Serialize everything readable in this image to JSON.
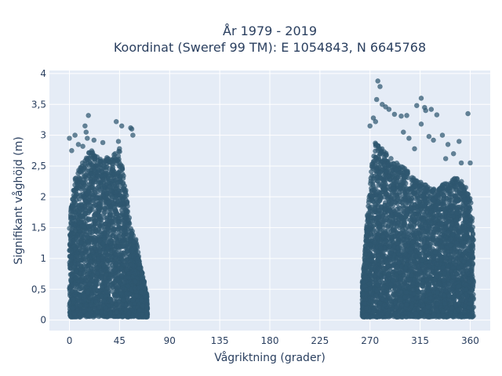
{
  "chart_data": {
    "type": "scatter",
    "title_line1": "År 1979 - 2019",
    "title_line2": "Koordinat (Sweref 99 TM): E 1054843, N 6645768",
    "xlabel": "Vågriktning (grader)",
    "ylabel": "Signifikant våghöjd (m)",
    "xlim": [
      -18,
      378
    ],
    "ylim": [
      -0.17,
      4.05
    ],
    "x_ticks": [
      0,
      45,
      90,
      135,
      180,
      225,
      270,
      315,
      360
    ],
    "x_tick_labels": [
      "0",
      "45",
      "90",
      "135",
      "180",
      "225",
      "270",
      "315",
      "360"
    ],
    "y_ticks": [
      0,
      0.5,
      1,
      1.5,
      2,
      2.5,
      3,
      3.5,
      4
    ],
    "y_tick_labels": [
      "0",
      "0,5",
      "1",
      "1,5",
      "2",
      "2,5",
      "3",
      "3,5",
      "4"
    ],
    "grid": true,
    "marker_color": "#2f5870",
    "background_color": "#e5ecf6",
    "clusters": [
      {
        "x_range": [
          0,
          70
        ],
        "envelope": [
          [
            0,
            1.6
          ],
          [
            5,
            2.3
          ],
          [
            10,
            2.5
          ],
          [
            20,
            2.8
          ],
          [
            30,
            2.6
          ],
          [
            40,
            2.7
          ],
          [
            45,
            2.8
          ],
          [
            50,
            2.2
          ],
          [
            55,
            1.5
          ],
          [
            60,
            1.3
          ],
          [
            65,
            0.8
          ],
          [
            70,
            0.4
          ]
        ]
      },
      {
        "x_range": [
          263,
          363
        ],
        "envelope": [
          [
            263,
            0.6
          ],
          [
            265,
            1.0
          ],
          [
            268,
            1.8
          ],
          [
            272,
            2.6
          ],
          [
            275,
            2.9
          ],
          [
            280,
            2.8
          ],
          [
            285,
            2.7
          ],
          [
            290,
            2.6
          ],
          [
            300,
            2.5
          ],
          [
            310,
            2.3
          ],
          [
            320,
            2.2
          ],
          [
            330,
            2.1
          ],
          [
            340,
            2.3
          ],
          [
            350,
            2.3
          ],
          [
            355,
            2.2
          ],
          [
            360,
            2.0
          ],
          [
            363,
            1.5
          ]
        ]
      }
    ],
    "outliers": [
      [
        0,
        2.95
      ],
      [
        5,
        3.0
      ],
      [
        14,
        3.15
      ],
      [
        15,
        3.05
      ],
      [
        16,
        2.95
      ],
      [
        17,
        3.32
      ],
      [
        22,
        2.92
      ],
      [
        42,
        3.22
      ],
      [
        44,
        2.9
      ],
      [
        47,
        3.15
      ],
      [
        55,
        3.12
      ],
      [
        56,
        3.1
      ],
      [
        57,
        3.0
      ],
      [
        30,
        2.88
      ],
      [
        2,
        2.75
      ],
      [
        8,
        2.85
      ],
      [
        12,
        2.82
      ],
      [
        277,
        3.88
      ],
      [
        279,
        3.79
      ],
      [
        276,
        3.58
      ],
      [
        281,
        3.5
      ],
      [
        284,
        3.46
      ],
      [
        287,
        3.42
      ],
      [
        273,
        3.28
      ],
      [
        275,
        3.22
      ],
      [
        270,
        3.15
      ],
      [
        292,
        3.34
      ],
      [
        298,
        3.31
      ],
      [
        303,
        3.32
      ],
      [
        312,
        3.48
      ],
      [
        316,
        3.6
      ],
      [
        319,
        3.45
      ],
      [
        320,
        3.4
      ],
      [
        325,
        3.42
      ],
      [
        330,
        3.33
      ],
      [
        316,
        3.18
      ],
      [
        323,
        2.98
      ],
      [
        327,
        2.92
      ],
      [
        335,
        3.0
      ],
      [
        340,
        2.85
      ],
      [
        350,
        2.9
      ],
      [
        358,
        3.35
      ],
      [
        360,
        2.55
      ],
      [
        345,
        2.7
      ],
      [
        305,
        2.95
      ],
      [
        300,
        3.05
      ],
      [
        310,
        2.78
      ],
      [
        352,
        2.55
      ],
      [
        338,
        2.62
      ]
    ]
  }
}
